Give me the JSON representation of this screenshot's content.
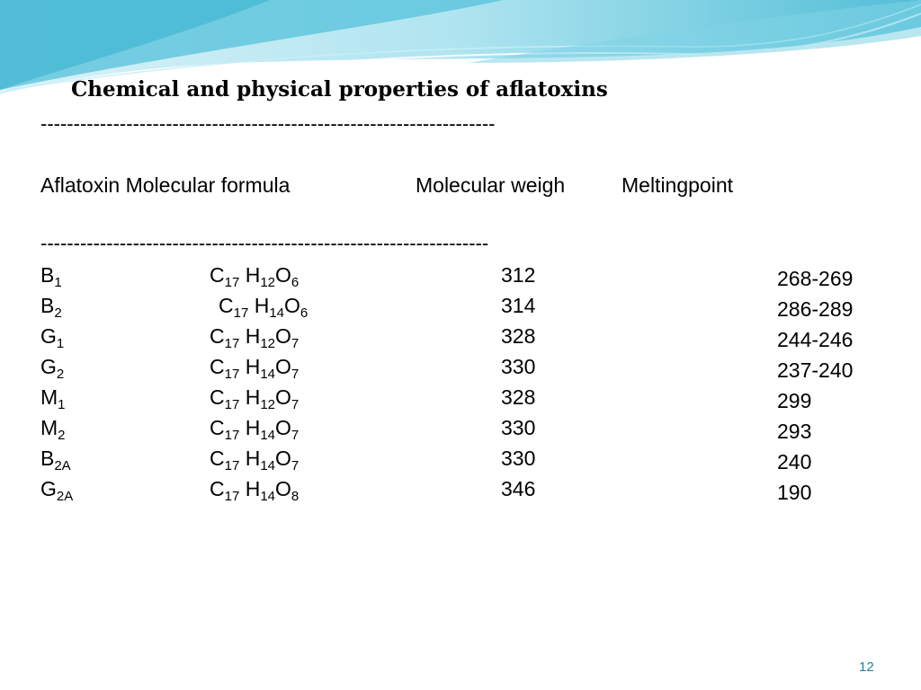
{
  "title": "Chemical and physical properties of aflatoxins",
  "separator_top": "---------------------------------------------------------------------",
  "separator_bottom": "--------------------------------------------------------------------",
  "headers": {
    "aflatoxin_formula": "Aflatoxin Molecular formula",
    "molecular_weight": "Molecular weigh",
    "melting_point": "Meltingpoint"
  },
  "rows": [
    {
      "name": "B",
      "name_sub": "1",
      "C": "C",
      "C_sub": "17",
      "H": "H",
      "H_sub": "12",
      "O": "O",
      "O_sub": "6",
      "weight": "312",
      "mp": "268-269"
    },
    {
      "name": "B",
      "name_sub": "2",
      "C": "C",
      "C_sub": "17",
      "H": "H",
      "H_sub": "14",
      "O": "O",
      "O_sub": "6",
      "weight": "314",
      "mp": "286-289"
    },
    {
      "name": "G",
      "name_sub": "1",
      "C": "C",
      "C_sub": "17",
      "H": "H",
      "H_sub": "12",
      "O": "O",
      "O_sub": "7",
      "weight": "328",
      "mp": "244-246"
    },
    {
      "name": "G",
      "name_sub": "2",
      "C": "C",
      "C_sub": "17",
      "H": "H",
      "H_sub": "14",
      "O": "O",
      "O_sub": "7",
      "weight": "330",
      "mp": "237-240"
    },
    {
      "name": "M",
      "name_sub": "1",
      "C": "C",
      "C_sub": "17",
      "H": "H",
      "H_sub": "12",
      "O": "O",
      "O_sub": "7",
      "weight": "328",
      "mp": "299"
    },
    {
      "name": "M",
      "name_sub": "2",
      "C": "C",
      "C_sub": "17",
      "H": "H",
      "H_sub": "14",
      "O": "O",
      "O_sub": "7",
      "weight": "330",
      "mp": "293"
    },
    {
      "name": "B",
      "name_sub": "2A",
      "C": "C",
      "C_sub": "17",
      "H": "H",
      "H_sub": "14",
      "O": "O",
      "O_sub": "7",
      "weight": "330",
      "mp": "240"
    },
    {
      "name": "G",
      "name_sub": "2A",
      "C": "C",
      "C_sub": "17",
      "H": "H",
      "H_sub": "14",
      "O": "O",
      "O_sub": "8",
      "weight": "346",
      "mp": "190"
    }
  ],
  "page_number": "12",
  "colors": {
    "wave_light": "#bfe9f2",
    "wave_mid": "#7fd3e6",
    "wave_dark": "#3bb3cf",
    "page_number": "#1f7e9e"
  }
}
